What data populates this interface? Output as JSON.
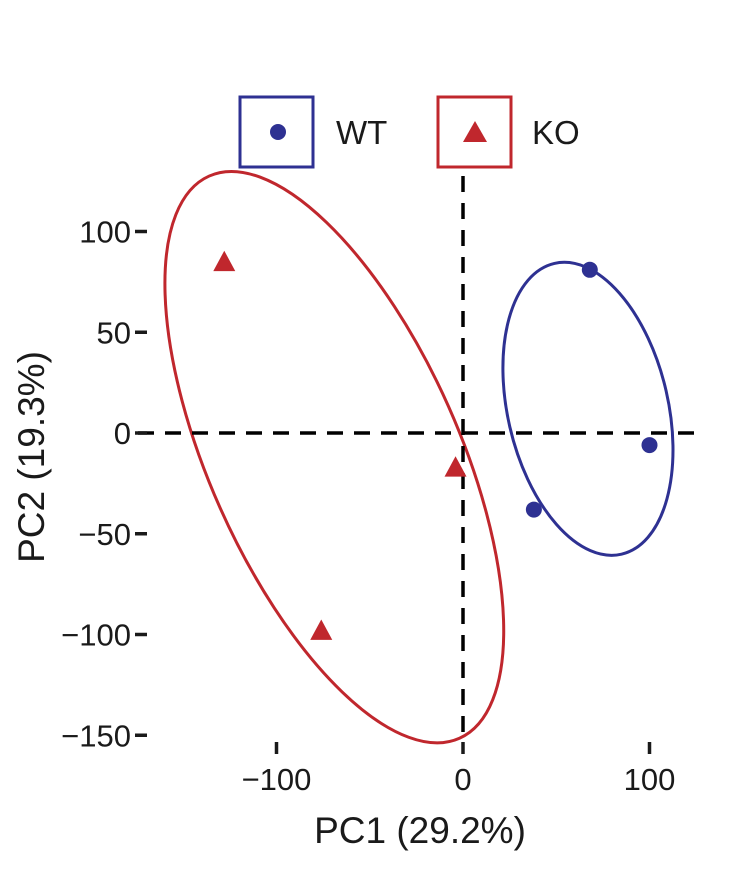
{
  "chart_data": {
    "type": "scatter",
    "xlabel": "PC1 (29.2%)",
    "ylabel": "PC2 (19.3%)",
    "xlim": [
      -160,
      125
    ],
    "ylim": [
      -155,
      115
    ],
    "x_ticks": [
      -100,
      0,
      100
    ],
    "x_tick_labels": [
      "−100",
      "0",
      "100"
    ],
    "y_ticks": [
      100,
      50,
      0,
      -50,
      -100,
      -150
    ],
    "y_tick_labels": [
      "100",
      "50",
      "0",
      "−50",
      "−100",
      "−150"
    ],
    "reference_lines": {
      "x": 0,
      "y": 0,
      "style": "dashed"
    },
    "grid": false,
    "legend_position": "top",
    "series": [
      {
        "name": "WT",
        "marker": "circle",
        "color": "#2e3192",
        "points": [
          {
            "x": 68,
            "y": 81
          },
          {
            "x": 100,
            "y": -6
          },
          {
            "x": 38,
            "y": -38
          }
        ],
        "ellipse": {
          "cx": 67,
          "cy": 12,
          "rx": 80,
          "ry": 43,
          "angle_deg": 77
        }
      },
      {
        "name": "KO",
        "marker": "triangle",
        "color": "#c0272d",
        "points": [
          {
            "x": -128,
            "y": 85
          },
          {
            "x": -4,
            "y": -17
          },
          {
            "x": -76,
            "y": -98
          }
        ],
        "ellipse": {
          "cx": -69,
          "cy": -12,
          "rx": 165,
          "ry": 67,
          "angle_deg": 66
        }
      }
    ]
  }
}
